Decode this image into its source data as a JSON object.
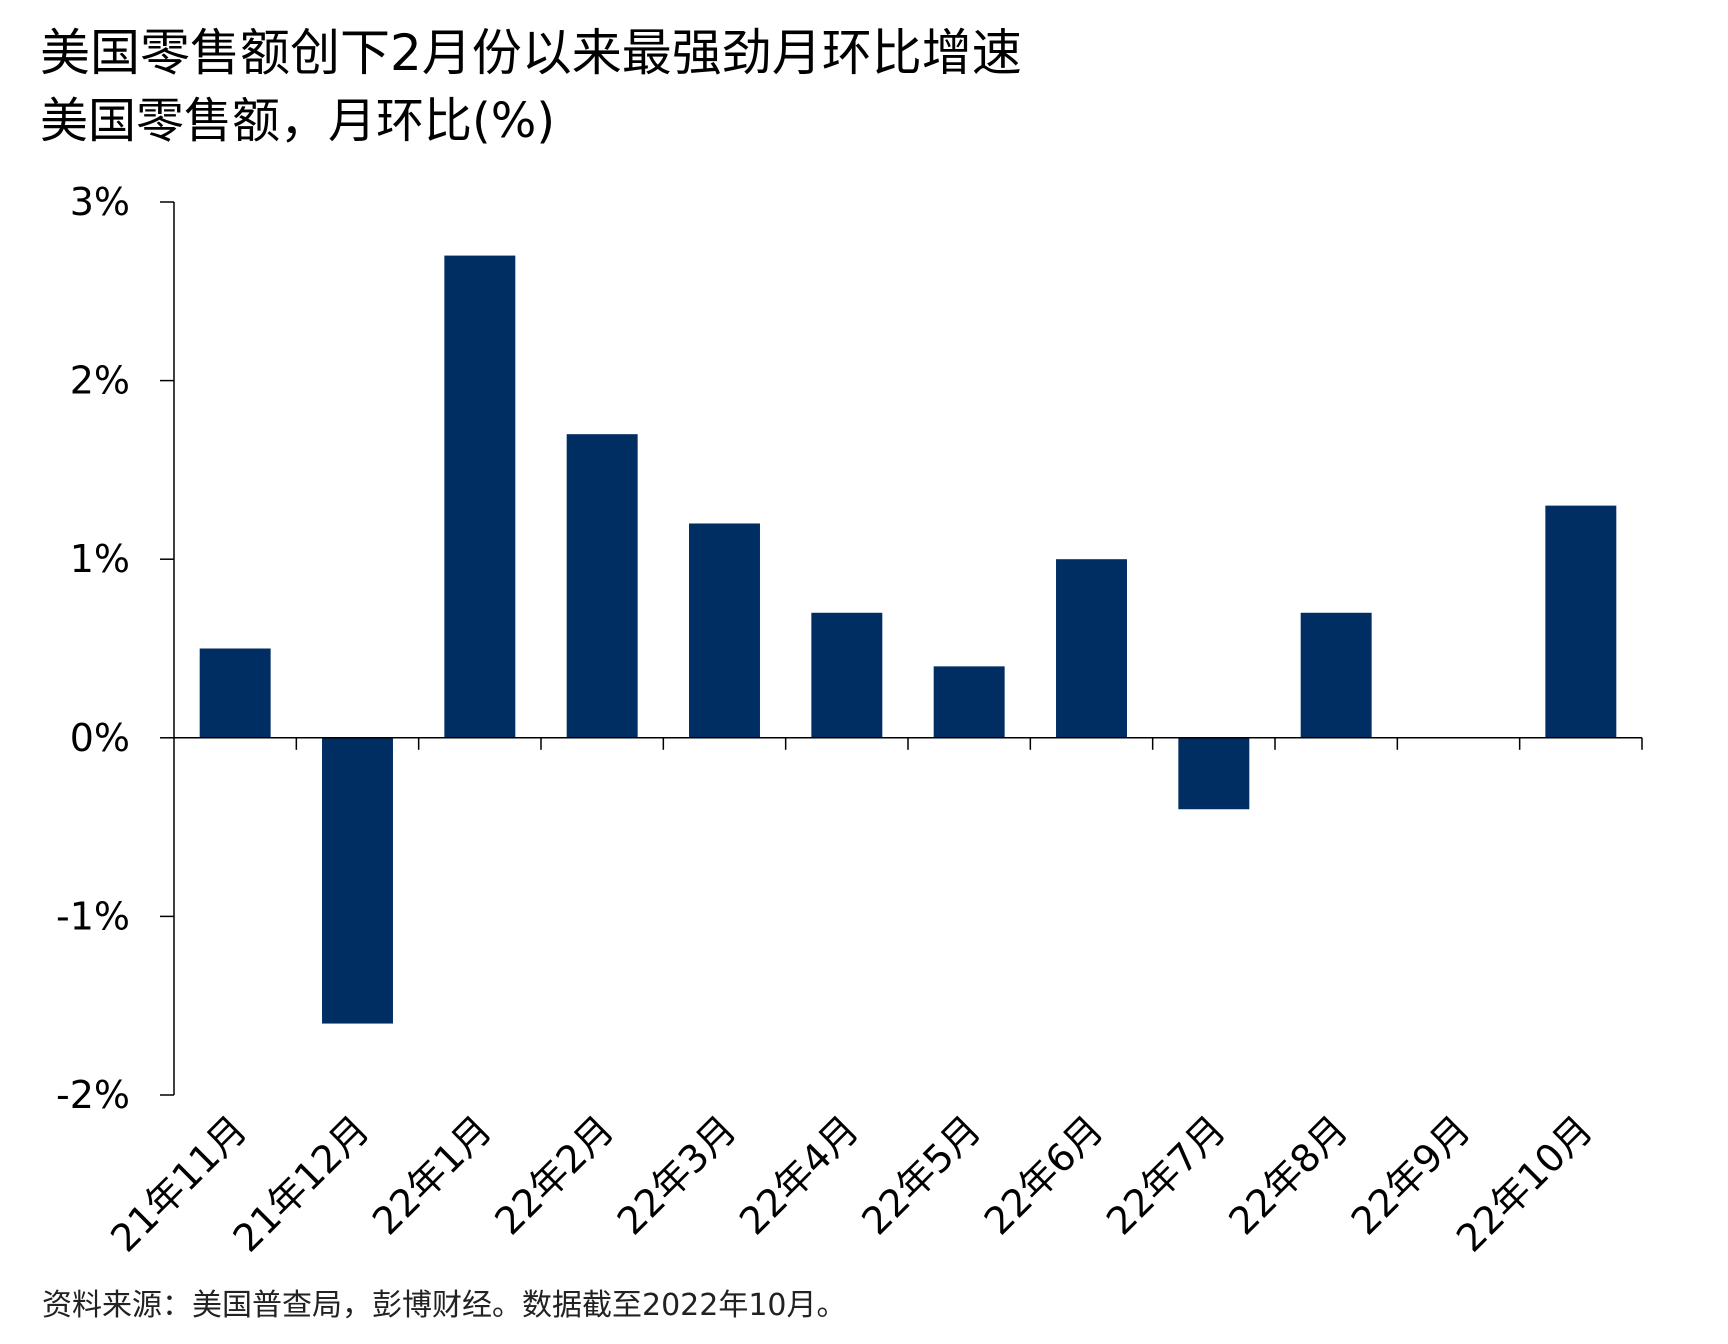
{
  "header": {
    "title": "美国零售额创下2月份以来最强劲月环比增速",
    "subtitle": "美国零售额，月环比(%)"
  },
  "footer": {
    "source": "资料来源：美国普查局，彭博财经。数据截至2022年10月。"
  },
  "chart_data": {
    "type": "bar",
    "categories": [
      "21年11月",
      "21年12月",
      "22年1月",
      "22年2月",
      "22年3月",
      "22年4月",
      "22年5月",
      "22年6月",
      "22年7月",
      "22年8月",
      "22年9月",
      "22年10月"
    ],
    "values": [
      0.5,
      -1.6,
      2.7,
      1.7,
      1.2,
      0.7,
      0.4,
      1.0,
      -0.4,
      0.7,
      0.0,
      1.3
    ],
    "ylim": [
      -2,
      3
    ],
    "yticks": [
      3,
      2,
      1,
      0,
      -1,
      -2
    ],
    "ytick_labels": [
      "3%",
      "2%",
      "1%",
      "0%",
      "-1%",
      "-2%"
    ],
    "bar_color": "#002D62",
    "grid": false,
    "legend": "none",
    "xlabel": "",
    "ylabel": ""
  }
}
